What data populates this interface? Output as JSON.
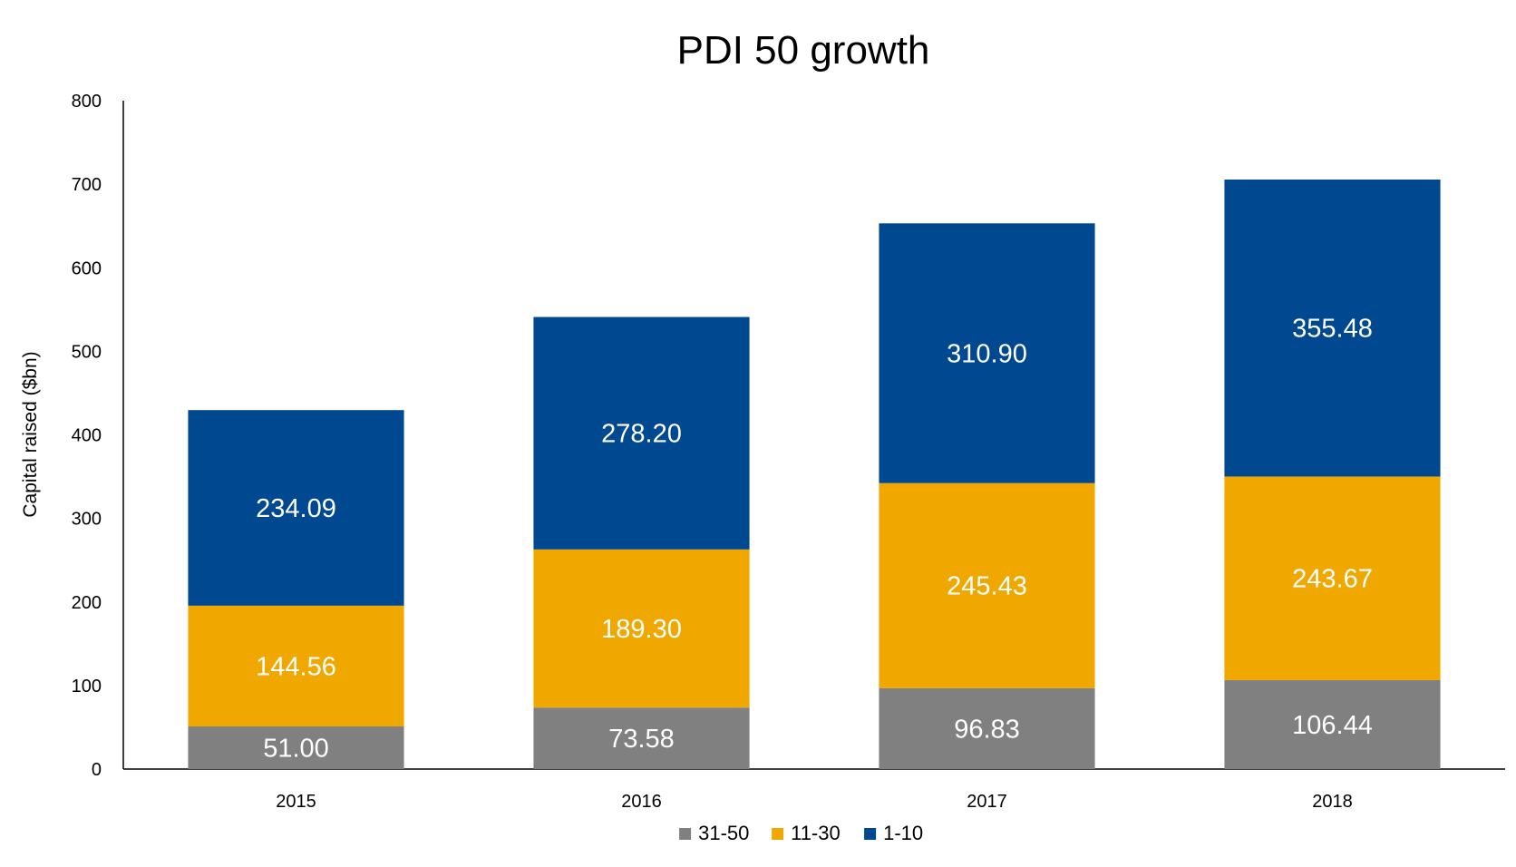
{
  "chart_data": {
    "type": "bar",
    "stacked": true,
    "title": "PDI 50 growth",
    "xlabel": "",
    "ylabel": "Capital raised ($bn)",
    "ylim": [
      0,
      800
    ],
    "yticks": [
      "0",
      "100",
      "200",
      "300",
      "400",
      "500",
      "600",
      "700",
      "800"
    ],
    "categories": [
      "2015",
      "2016",
      "2017",
      "2018"
    ],
    "series": [
      {
        "name": "31-50",
        "color": "#808080",
        "values": [
          51.0,
          73.58,
          96.83,
          106.44
        ],
        "labels": [
          "51.00",
          "73.58",
          "96.83",
          "106.44"
        ]
      },
      {
        "name": "11-30",
        "color": "#F0A800",
        "values": [
          144.56,
          189.3,
          245.43,
          243.67
        ],
        "labels": [
          "144.56",
          "189.30",
          "245.43",
          "243.67"
        ]
      },
      {
        "name": "1-10",
        "color": "#004990",
        "values": [
          234.09,
          278.2,
          310.9,
          355.48
        ],
        "labels": [
          "234.09",
          "278.20",
          "310.90",
          "355.48"
        ]
      }
    ],
    "grid": false,
    "legend_position": "bottom"
  }
}
